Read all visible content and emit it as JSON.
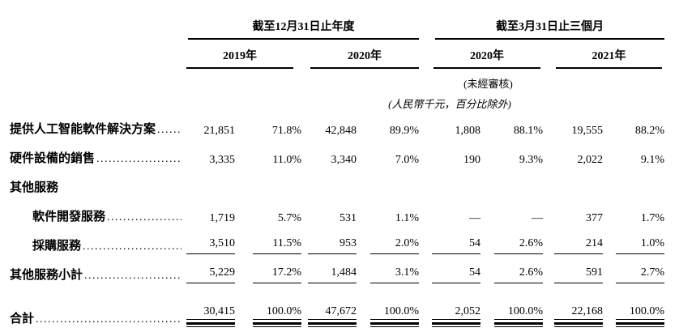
{
  "table": {
    "col_groups": [
      {
        "title": "截至12月31日止年度",
        "years": [
          "2019年",
          "2020年"
        ]
      },
      {
        "title": "截至3月31日止三個月",
        "years": [
          "2020年",
          "2021年"
        ]
      }
    ],
    "notes": {
      "unaudited": "(未經審核)",
      "units": "(人民幣千元，百分比除外)"
    },
    "rows": [
      {
        "label": "提供人工智能軟件解決方案",
        "indent": 0,
        "leader": true,
        "style": "normal",
        "values": [
          "21,851",
          "71.8%",
          "42,848",
          "89.9%",
          "1,808",
          "88.1%",
          "19,555",
          "88.2%"
        ]
      },
      {
        "label": "硬件設備的銷售",
        "indent": 0,
        "leader": true,
        "style": "normal",
        "values": [
          "3,335",
          "11.0%",
          "3,340",
          "7.0%",
          "190",
          "9.3%",
          "2,022",
          "9.1%"
        ]
      },
      {
        "label": "其他服務",
        "indent": 0,
        "leader": false,
        "style": "normal",
        "values": []
      },
      {
        "label": "軟件開發服務",
        "indent": 1,
        "leader": true,
        "style": "normal",
        "values": [
          "1,719",
          "5.7%",
          "531",
          "1.1%",
          "—",
          "—",
          "377",
          "1.7%"
        ]
      },
      {
        "label": "採購服務",
        "indent": 1,
        "leader": true,
        "style": "underline",
        "values": [
          "3,510",
          "11.5%",
          "953",
          "2.0%",
          "54",
          "2.6%",
          "214",
          "1.0%"
        ]
      },
      {
        "label": "其他服務小計",
        "indent": 0,
        "leader": true,
        "style": "underline",
        "values": [
          "5,229",
          "17.2%",
          "1,484",
          "3.1%",
          "54",
          "2.6%",
          "591",
          "2.7%"
        ]
      },
      {
        "label": "合計",
        "indent": 0,
        "leader": true,
        "style": "total",
        "values": [
          "30,415",
          "100.0%",
          "47,672",
          "100.0%",
          "2,052",
          "100.0%",
          "22,168",
          "100.0%"
        ]
      }
    ],
    "misc": {
      "leader_dots": "................................................................................"
    },
    "colors": {
      "text": "#000000",
      "background": "#ffffff"
    }
  }
}
